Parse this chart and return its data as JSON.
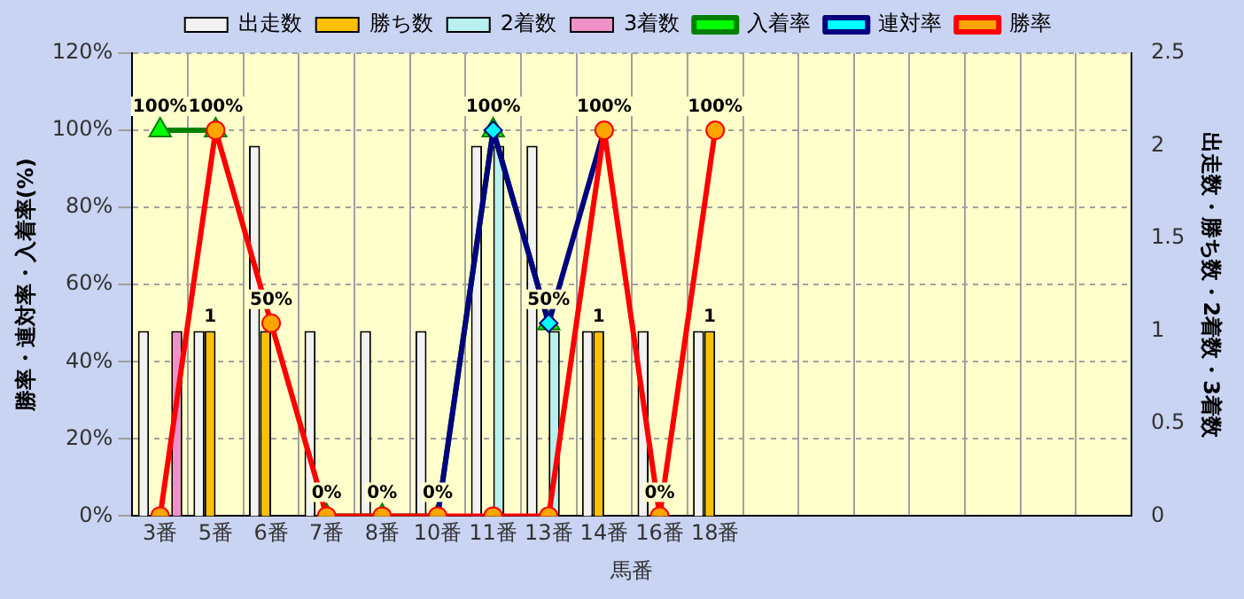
{
  "chart_data": {
    "type": "bar",
    "xlabel": "馬番",
    "ylabel": "勝率・連対率・入着率(%)",
    "y2label": "出走数・勝ち数・2着数・3着数",
    "categories": [
      "3番",
      "5番",
      "6番",
      "7番",
      "8番",
      "10番",
      "11番",
      "13番",
      "14番",
      "16番",
      "18番",
      null,
      null,
      null,
      null,
      null,
      null,
      null
    ],
    "series": [
      {
        "name": "出走数",
        "axis": "y2",
        "color": "#f2f2f2",
        "values": [
          1,
          1,
          2,
          1,
          1,
          1,
          2,
          2,
          1,
          1,
          1,
          null,
          null,
          null,
          null,
          null,
          null,
          null
        ]
      },
      {
        "name": "勝ち数",
        "axis": "y2",
        "color": "#ffc000",
        "values": [
          0,
          1,
          1,
          0,
          0,
          0,
          0,
          0,
          1,
          0,
          1,
          null,
          null,
          null,
          null,
          null,
          null,
          null
        ],
        "value_labels": [
          null,
          "1",
          null,
          null,
          null,
          null,
          null,
          null,
          "1",
          null,
          "1",
          null,
          null,
          null,
          null,
          null,
          null,
          null
        ]
      },
      {
        "name": "2着数",
        "axis": "y2",
        "color": "#b8f0f0",
        "values": [
          0,
          0,
          0,
          0,
          0,
          0,
          2,
          1,
          0,
          0,
          0,
          null,
          null,
          null,
          null,
          null,
          null,
          null
        ]
      },
      {
        "name": "3着数",
        "axis": "y2",
        "color": "#f090c8",
        "values": [
          1,
          0,
          0,
          0,
          0,
          0,
          0,
          0,
          0,
          0,
          0,
          null,
          null,
          null,
          null,
          null,
          null,
          null
        ]
      },
      {
        "name": "入着率",
        "type": "line",
        "marker": "triangle",
        "color": "#008000",
        "values": [
          100,
          100,
          null,
          0,
          0,
          0,
          100,
          50,
          null,
          null,
          null,
          null,
          null,
          null,
          null,
          null,
          null,
          null
        ],
        "value_labels": [
          "100%",
          "100%",
          null,
          "0%",
          "0%",
          "0%",
          "100%",
          "50%",
          null,
          null,
          null,
          null,
          null,
          null,
          null,
          null,
          null,
          null
        ]
      },
      {
        "name": "連対率",
        "type": "line",
        "marker": "diamond",
        "color": "#000080",
        "values": [
          null,
          null,
          null,
          null,
          null,
          0,
          100,
          50,
          100,
          null,
          null,
          null,
          null,
          null,
          null,
          null,
          null,
          null
        ]
      },
      {
        "name": "勝率",
        "type": "line",
        "marker": "circle",
        "color": "#ff0000",
        "values": [
          0,
          100,
          50,
          0,
          0,
          0,
          0,
          0,
          100,
          0,
          100,
          null,
          null,
          null,
          null,
          null,
          null,
          null
        ],
        "value_labels": [
          null,
          null,
          "50%",
          null,
          null,
          null,
          null,
          null,
          "100%",
          "0%",
          "100%",
          null,
          null,
          null,
          null,
          null,
          null,
          null
        ]
      }
    ],
    "ylim": [
      0,
      120
    ],
    "yticks": [
      {
        "value": 0,
        "label": "0%"
      },
      {
        "value": 20,
        "label": "20%"
      },
      {
        "value": 40,
        "label": "40%"
      },
      {
        "value": 60,
        "label": "60%"
      },
      {
        "value": 80,
        "label": "80%"
      },
      {
        "value": 100,
        "label": "100%"
      },
      {
        "value": 120,
        "label": "120%"
      }
    ],
    "y2lim": [
      0,
      2.5
    ],
    "y2ticks": [
      0,
      0.5,
      1,
      1.5,
      2,
      2.5
    ],
    "grid": true,
    "legend": "top"
  }
}
